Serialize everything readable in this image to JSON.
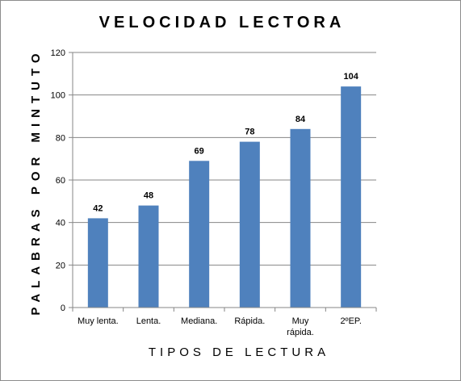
{
  "chart_data": {
    "type": "bar",
    "title": "VELOCIDAD LECTORA",
    "xlabel": "TIPOS DE LECTURA",
    "ylabel": "PALABRAS POR MINTUTO",
    "categories": [
      [
        "Muy lenta."
      ],
      [
        "Lenta."
      ],
      [
        "Mediana."
      ],
      [
        "Rápida."
      ],
      [
        "Muy",
        "rápida."
      ],
      [
        "2ºEP."
      ]
    ],
    "values": [
      42,
      48,
      69,
      78,
      84,
      104
    ],
    "ylim": [
      0,
      120
    ],
    "yticks": [
      0,
      20,
      40,
      60,
      80,
      100,
      120
    ],
    "grid": true,
    "legend": "none",
    "colors": {
      "bar": "#4f81bd",
      "grid": "#868686",
      "axis": "#868686"
    }
  }
}
